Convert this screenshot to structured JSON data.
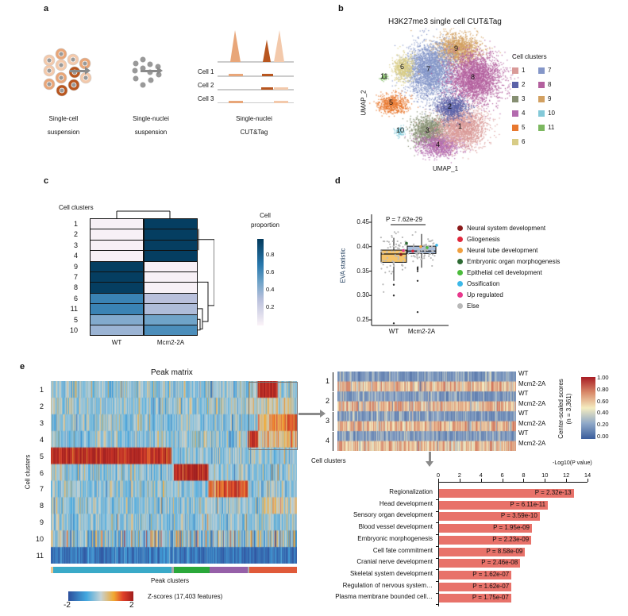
{
  "panel_a": {
    "label": "a",
    "steps": [
      {
        "line1": "Single-cell",
        "line2": "suspension"
      },
      {
        "line1": "Single-nuclei",
        "line2": "suspension"
      },
      {
        "line1": "Single-nuclei",
        "line2": "CUT&Tag"
      }
    ],
    "tracks": [
      "Cell 1",
      "Cell 2",
      "Cell 3"
    ],
    "colors": {
      "dark": "#b8561f",
      "mid": "#e8a679",
      "light": "#f3c9ab",
      "nucleus": "#8f8f8f"
    }
  },
  "panel_b": {
    "label": "b",
    "title": "H3K27me3 single cell CUT&Tag",
    "xlabel": "UMAP_1",
    "ylabel": "UMAP_2",
    "legend_title": "Cell clusters",
    "clusters": [
      {
        "id": "1",
        "color": "#d99a98"
      },
      {
        "id": "2",
        "color": "#5b62a8"
      },
      {
        "id": "3",
        "color": "#868f72"
      },
      {
        "id": "4",
        "color": "#b36aae"
      },
      {
        "id": "5",
        "color": "#e8782f"
      },
      {
        "id": "6",
        "color": "#d8cc86"
      },
      {
        "id": "7",
        "color": "#8496c8"
      },
      {
        "id": "8",
        "color": "#b3609e"
      },
      {
        "id": "9",
        "color": "#d2a061"
      },
      {
        "id": "10",
        "color": "#83c9d8"
      },
      {
        "id": "11",
        "color": "#7cb860"
      }
    ]
  },
  "panel_c": {
    "label": "c",
    "row_title": "Cell clusters",
    "legend_title_1": "Cell",
    "legend_title_2": "proportion",
    "legend_ticks": [
      "0.8",
      "0.6",
      "0.4",
      "0.2"
    ]
  },
  "panel_d": {
    "label": "d",
    "p_label": "P = 7.62e-29",
    "legend": [
      {
        "label": "Neural system development",
        "color": "#8b1a1a"
      },
      {
        "label": "Gliogenesis",
        "color": "#e0283c"
      },
      {
        "label": "Neural tube development",
        "color": "#f0a040"
      },
      {
        "label": "Embryonic organ morphogenesis",
        "color": "#2e6b34"
      },
      {
        "label": "Epithelial cell development",
        "color": "#4cbb3c"
      },
      {
        "label": "Ossification",
        "color": "#3cb8e8"
      },
      {
        "label": "Up regulated",
        "color": "#e8388c"
      },
      {
        "label": "Else",
        "color": "#b8b8b8"
      }
    ]
  },
  "panel_e": {
    "label": "e",
    "title": "Peak matrix",
    "row_title": "Cell clusters",
    "rows": [
      "1",
      "2",
      "3",
      "4",
      "5",
      "6",
      "7",
      "8",
      "9",
      "10",
      "11"
    ],
    "col_title": "Peak clusters",
    "peak_cluster_colors": [
      "#3aaac8",
      "#2aa83a",
      "#9660a8",
      "#e05a3a"
    ],
    "colorbar_min": "-2",
    "colorbar_max": "2",
    "colorbar_label": "Z-scores (17,403 features)",
    "sub_heatmap": {
      "clusters": [
        "1",
        "2",
        "3",
        "4"
      ],
      "conditions": [
        "WT",
        "Mcm2-2A"
      ],
      "row_title": "Cell clusters",
      "legend_title": "Center-scaled scores",
      "legend_subtitle": "(n = 3,361)",
      "legend_ticks": [
        "1.00",
        "0.80",
        "0.60",
        "0.40",
        "0.20",
        "0.00"
      ]
    }
  },
  "chart_data": [
    {
      "type": "heatmap",
      "panel": "c",
      "columns": [
        "WT",
        "Mcm2-2A"
      ],
      "rows": [
        "1",
        "2",
        "3",
        "4",
        "9",
        "7",
        "8",
        "6",
        "11",
        "5",
        "10"
      ],
      "values": [
        [
          0.02,
          0.98
        ],
        [
          0.02,
          0.98
        ],
        [
          0.02,
          0.98
        ],
        [
          0.02,
          0.98
        ],
        [
          0.98,
          0.02
        ],
        [
          0.98,
          0.02
        ],
        [
          0.98,
          0.02
        ],
        [
          0.65,
          0.3
        ],
        [
          0.65,
          0.33
        ],
        [
          0.45,
          0.5
        ],
        [
          0.38,
          0.6
        ]
      ],
      "colorbar_range": [
        0,
        1
      ]
    },
    {
      "type": "box",
      "panel": "d",
      "ylabel": "EVA statistic",
      "categories": [
        "WT",
        "Mcm2-2A"
      ],
      "yticks": [
        "0.25",
        "0.30",
        "0.35",
        "0.40",
        "0.45"
      ],
      "ylim": [
        0.24,
        0.46
      ],
      "boxes": [
        {
          "q1": 0.368,
          "median": 0.385,
          "q3": 0.393,
          "whisker_low": 0.33,
          "whisker_high": 0.418
        },
        {
          "q1": 0.386,
          "median": 0.391,
          "q3": 0.401,
          "whisker_low": 0.357,
          "whisker_high": 0.426
        }
      ]
    },
    {
      "type": "bar",
      "panel": "e",
      "orientation": "horizontal",
      "xlabel": "-Log10(P value)",
      "xticks": [
        "0",
        "2",
        "4",
        "6",
        "8",
        "10",
        "12",
        "14"
      ],
      "xlim": [
        0,
        14
      ],
      "color": "#e8726a",
      "categories": [
        "Regionalization",
        "Head development",
        "Sensory organ development",
        "Blood vessel development",
        "Embryonic morphogenesis",
        "Cell fate commitment",
        "Cranial nerve development",
        "Skeletal system development",
        "Regulation of nervous system…",
        "Plasma membrane bounded cell…"
      ],
      "values": [
        12.63,
        10.21,
        9.44,
        8.71,
        8.65,
        8.07,
        7.61,
        6.79,
        6.79,
        6.76
      ],
      "labels": [
        "P = 2.32e-13",
        "P = 6.11e-11",
        "P = 3.59e-10",
        "P = 1.95e-09",
        "P = 2.23e-09",
        "P = 8.58e-09",
        "P = 2.46e-08",
        "P = 1.62e-07",
        "P = 1.62e-07",
        "P = 1.75e-07"
      ]
    }
  ]
}
